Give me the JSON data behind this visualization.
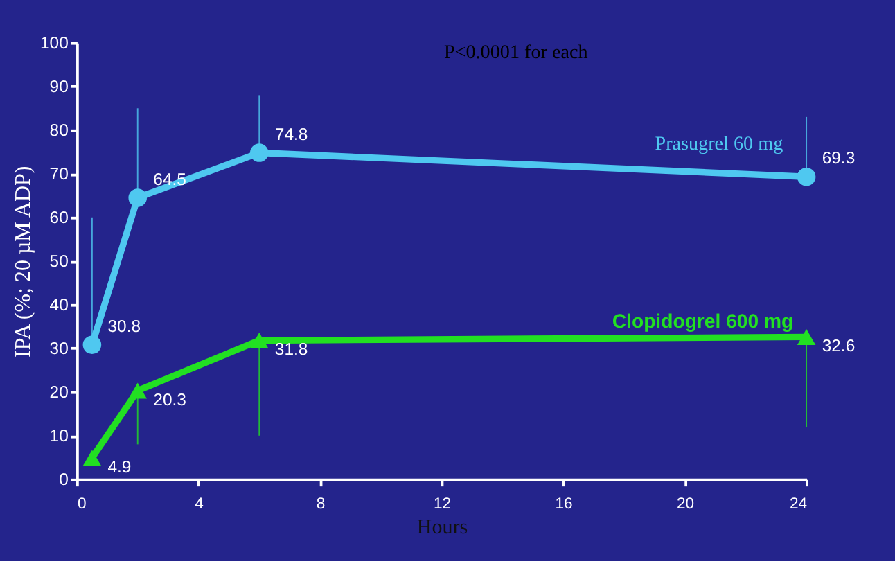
{
  "chart_data": {
    "type": "line",
    "xlabel": "Hours",
    "ylabel": "IPA (%; 20 µM ADP)",
    "annotations": [
      "P<0.0001 for each"
    ],
    "xlim": [
      0,
      24
    ],
    "xticks": [
      0,
      4,
      8,
      12,
      16,
      20,
      24
    ],
    "ylim": [
      0,
      100
    ],
    "yticks": [
      0,
      10,
      20,
      30,
      40,
      50,
      60,
      70,
      80,
      90,
      100
    ],
    "grid": false,
    "data_labels": true,
    "line_style": "solid",
    "series": [
      {
        "name": "Prasugrel 60 mg",
        "color": "#4fc8f0",
        "marker": "circle",
        "x": [
          0.5,
          2,
          6,
          24
        ],
        "values": [
          30.8,
          64.5,
          74.8,
          69.3
        ],
        "errors": [
          [
            30.8,
            60
          ],
          [
            64.5,
            85
          ],
          [
            74.8,
            88
          ],
          [
            69.3,
            83
          ]
        ]
      },
      {
        "name": "Clopidogrel 600 mg",
        "color": "#22e022",
        "marker": "triangle",
        "x": [
          0.5,
          2,
          6,
          24
        ],
        "values": [
          4.9,
          20.3,
          31.8,
          32.6
        ],
        "errors": [
          null,
          [
            8,
            20.3
          ],
          [
            10,
            31.8
          ],
          [
            12,
            32.6
          ]
        ]
      }
    ]
  }
}
